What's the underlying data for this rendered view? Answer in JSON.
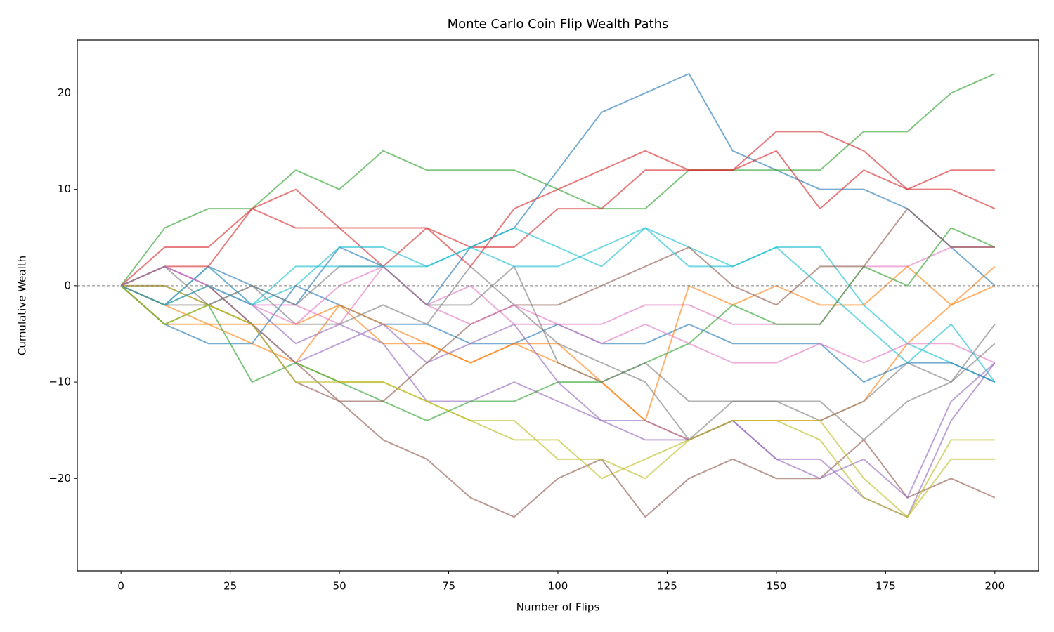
{
  "chart_data": {
    "type": "line",
    "title": "Monte Carlo Coin Flip Wealth Paths",
    "x_label": "Number of Flips",
    "y_label": "Cumulative Wealth",
    "x": [
      0,
      10,
      20,
      30,
      40,
      50,
      60,
      70,
      80,
      90,
      100,
      110,
      120,
      130,
      140,
      150,
      160,
      170,
      180,
      190,
      200
    ],
    "series": [
      {
        "color": "#1f77b4",
        "values": [
          0,
          -2,
          2,
          0,
          -2,
          4,
          2,
          -2,
          4,
          6,
          12,
          18,
          20,
          22,
          14,
          12,
          10,
          10,
          8,
          4,
          0
        ]
      },
      {
        "color": "#ff7f0e",
        "values": [
          0,
          -4,
          -4,
          -6,
          -8,
          -2,
          -6,
          -6,
          -8,
          -6,
          -6,
          -10,
          -14,
          -16,
          -14,
          -14,
          -14,
          -12,
          -6,
          -2,
          2
        ]
      },
      {
        "color": "#2ca02c",
        "values": [
          0,
          6,
          8,
          8,
          12,
          10,
          14,
          12,
          12,
          12,
          10,
          8,
          8,
          12,
          12,
          12,
          12,
          16,
          16,
          20,
          22
        ]
      },
      {
        "color": "#d62728",
        "values": [
          0,
          4,
          4,
          8,
          6,
          6,
          2,
          6,
          4,
          4,
          8,
          8,
          12,
          12,
          12,
          14,
          8,
          12,
          10,
          10,
          8
        ]
      },
      {
        "color": "#9467bd",
        "values": [
          0,
          2,
          0,
          -2,
          -6,
          -4,
          -6,
          -12,
          -12,
          -10,
          -12,
          -14,
          -16,
          -16,
          -14,
          -18,
          -18,
          -22,
          -24,
          -14,
          -8
        ]
      },
      {
        "color": "#8c564b",
        "values": [
          0,
          0,
          -2,
          -4,
          -8,
          -12,
          -16,
          -18,
          -22,
          -24,
          -20,
          -18,
          -24,
          -20,
          -18,
          -20,
          -20,
          -16,
          -22,
          -20,
          -22
        ]
      },
      {
        "color": "#e377c2",
        "values": [
          0,
          -2,
          2,
          -2,
          -2,
          -4,
          2,
          -2,
          0,
          -4,
          -4,
          -4,
          -2,
          -2,
          -4,
          -4,
          -4,
          2,
          2,
          4,
          4
        ]
      },
      {
        "color": "#7f7f7f",
        "values": [
          0,
          -2,
          -2,
          0,
          -4,
          -4,
          -2,
          -4,
          2,
          -2,
          -6,
          -8,
          -10,
          -16,
          -12,
          -12,
          -12,
          -16,
          -12,
          -10,
          -4
        ]
      },
      {
        "color": "#bcbd22",
        "values": [
          0,
          0,
          -2,
          -4,
          -8,
          -10,
          -10,
          -12,
          -14,
          -16,
          -16,
          -20,
          -18,
          -16,
          -14,
          -14,
          -16,
          -22,
          -24,
          -16,
          -16
        ]
      },
      {
        "color": "#17becf",
        "values": [
          0,
          -2,
          2,
          -2,
          0,
          4,
          4,
          2,
          4,
          6,
          4,
          2,
          6,
          4,
          2,
          4,
          4,
          -2,
          -6,
          -8,
          -10
        ]
      },
      {
        "color": "#1f77b4",
        "values": [
          0,
          -4,
          -6,
          -6,
          0,
          -2,
          -4,
          -4,
          -6,
          -6,
          -4,
          -6,
          -6,
          -4,
          -6,
          -6,
          -6,
          -10,
          -8,
          -8,
          -10
        ]
      },
      {
        "color": "#ff7f0e",
        "values": [
          0,
          -2,
          -4,
          -4,
          -4,
          -2,
          -4,
          -6,
          -8,
          -6,
          -8,
          -10,
          -14,
          0,
          -2,
          0,
          -2,
          -2,
          2,
          -2,
          0
        ]
      },
      {
        "color": "#2ca02c",
        "values": [
          0,
          -4,
          -2,
          -10,
          -8,
          -10,
          -12,
          -14,
          -12,
          -12,
          -10,
          -10,
          -8,
          -6,
          -2,
          -4,
          -4,
          2,
          0,
          6,
          4
        ]
      },
      {
        "color": "#d62728",
        "values": [
          0,
          2,
          2,
          8,
          10,
          6,
          6,
          6,
          2,
          8,
          10,
          12,
          14,
          12,
          12,
          16,
          16,
          14,
          10,
          12,
          12
        ]
      },
      {
        "color": "#9467bd",
        "values": [
          0,
          2,
          0,
          -4,
          -8,
          -6,
          -4,
          -8,
          -6,
          -4,
          -10,
          -14,
          -14,
          -16,
          -14,
          -18,
          -20,
          -18,
          -22,
          -12,
          -8
        ]
      },
      {
        "color": "#8c564b",
        "values": [
          0,
          -2,
          0,
          -4,
          -10,
          -12,
          -12,
          -8,
          -4,
          -2,
          -2,
          0,
          2,
          4,
          0,
          -2,
          2,
          2,
          8,
          4,
          4
        ]
      },
      {
        "color": "#e377c2",
        "values": [
          0,
          2,
          0,
          -2,
          -4,
          0,
          2,
          -2,
          -4,
          -2,
          -4,
          -6,
          -4,
          -6,
          -8,
          -8,
          -6,
          -8,
          -6,
          -6,
          -8
        ]
      },
      {
        "color": "#7f7f7f",
        "values": [
          0,
          2,
          -2,
          0,
          -2,
          2,
          2,
          -2,
          -2,
          2,
          -8,
          -10,
          -8,
          -12,
          -12,
          -12,
          -14,
          -12,
          -8,
          -10,
          -6
        ]
      },
      {
        "color": "#bcbd22",
        "values": [
          0,
          -4,
          -2,
          -4,
          -10,
          -10,
          -10,
          -12,
          -14,
          -14,
          -18,
          -18,
          -20,
          -16,
          -14,
          -14,
          -14,
          -20,
          -24,
          -18,
          -18
        ]
      },
      {
        "color": "#17becf",
        "values": [
          0,
          -2,
          0,
          -2,
          2,
          2,
          2,
          2,
          4,
          2,
          2,
          4,
          6,
          2,
          2,
          4,
          0,
          -4,
          -8,
          -4,
          -10
        ]
      }
    ],
    "line_opacity": 0.6,
    "reference_line": 0,
    "xlim": [
      -10,
      210
    ],
    "xticks": [
      0,
      25,
      50,
      75,
      100,
      125,
      150,
      175,
      200
    ],
    "ylim": [
      -29.6,
      25.5
    ],
    "yticks": [
      {
        "value": -20,
        "label": "−20"
      },
      {
        "value": -10,
        "label": "−10"
      },
      0,
      10,
      20
    ]
  }
}
